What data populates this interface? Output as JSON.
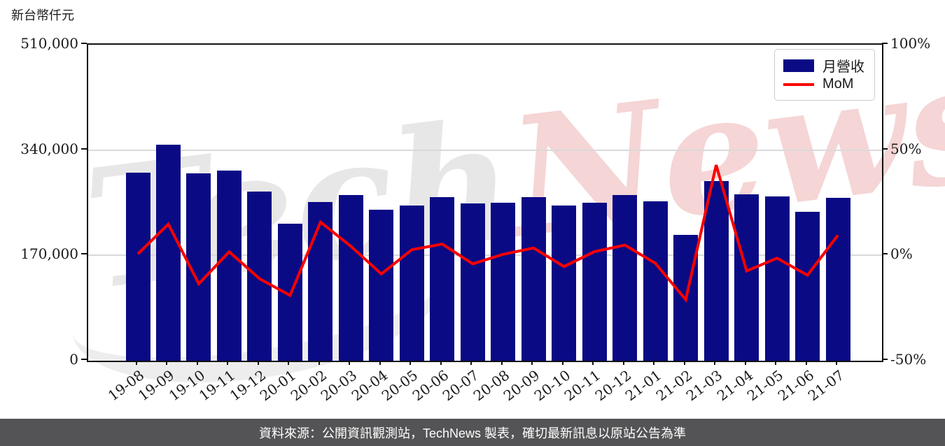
{
  "title": "新台幣仟元",
  "watermark": {
    "tech": "Tech",
    "news": "News"
  },
  "legend": {
    "items": [
      {
        "label": "月營收",
        "type": "bar"
      },
      {
        "label": "MoM",
        "type": "line"
      }
    ]
  },
  "footer": {
    "text": "資料來源：公開資訊觀測站，TechNews 製表，確切最新訊息以原站公告為準"
  },
  "colors": {
    "bar": "#0a0a85",
    "line": "#fa0000",
    "grid": "#d9d9d9",
    "spine": "#111111",
    "footer_bg": "#545456",
    "footer_text": "#ffffff",
    "watermark_gray": "rgba(170,170,170,0.28)",
    "watermark_red": "rgba(214,80,80,0.24)"
  },
  "chart_data": {
    "type": "bar",
    "title": "新台幣仟元",
    "categories": [
      "19-08",
      "19-09",
      "19-10",
      "19-11",
      "19-12",
      "20-01",
      "20-02",
      "20-03",
      "20-04",
      "20-05",
      "20-06",
      "20-07",
      "20-08",
      "20-09",
      "20-10",
      "20-11",
      "20-12",
      "21-01",
      "21-02",
      "21-03",
      "21-04",
      "21-05",
      "21-06",
      "21-07"
    ],
    "series": [
      {
        "name": "月營收",
        "type": "bar",
        "axis": "left",
        "color": "#0a0a85",
        "values": [
          304000,
          349000,
          302000,
          307000,
          273000,
          221000,
          256000,
          267000,
          244000,
          250000,
          264000,
          254000,
          255000,
          264000,
          250000,
          255000,
          267000,
          257000,
          203000,
          290000,
          269000,
          265000,
          240000,
          263000
        ]
      },
      {
        "name": "MoM",
        "type": "line",
        "axis": "right",
        "color": "#fa0000",
        "unit": "%",
        "values": [
          0.7,
          14.8,
          -13.5,
          1.7,
          -11.1,
          -19.0,
          15.8,
          4.3,
          -8.8,
          2.7,
          5.4,
          -4.0,
          0.5,
          3.5,
          -5.3,
          1.8,
          4.9,
          -3.7,
          -21.0,
          42.9,
          -7.4,
          -1.3,
          -9.4,
          9.6
        ]
      }
    ],
    "left_axis": {
      "title": "新台幣仟元",
      "range": [
        0,
        510000
      ],
      "ticks": [
        {
          "label": "0",
          "value": 0
        },
        {
          "label": "170,000",
          "value": 170000
        },
        {
          "label": "340,000",
          "value": 340000
        },
        {
          "label": "510,000",
          "value": 510000
        }
      ]
    },
    "right_axis": {
      "range": [
        -50,
        100
      ],
      "ticks": [
        {
          "label": "-50%",
          "value": -50
        },
        {
          "label": "0%",
          "value": 0
        },
        {
          "label": "50%",
          "value": 50
        },
        {
          "label": "100%",
          "value": 100
        }
      ]
    },
    "grid": "horizontal gridlines at interior ticks",
    "legend_position": "top-right"
  }
}
